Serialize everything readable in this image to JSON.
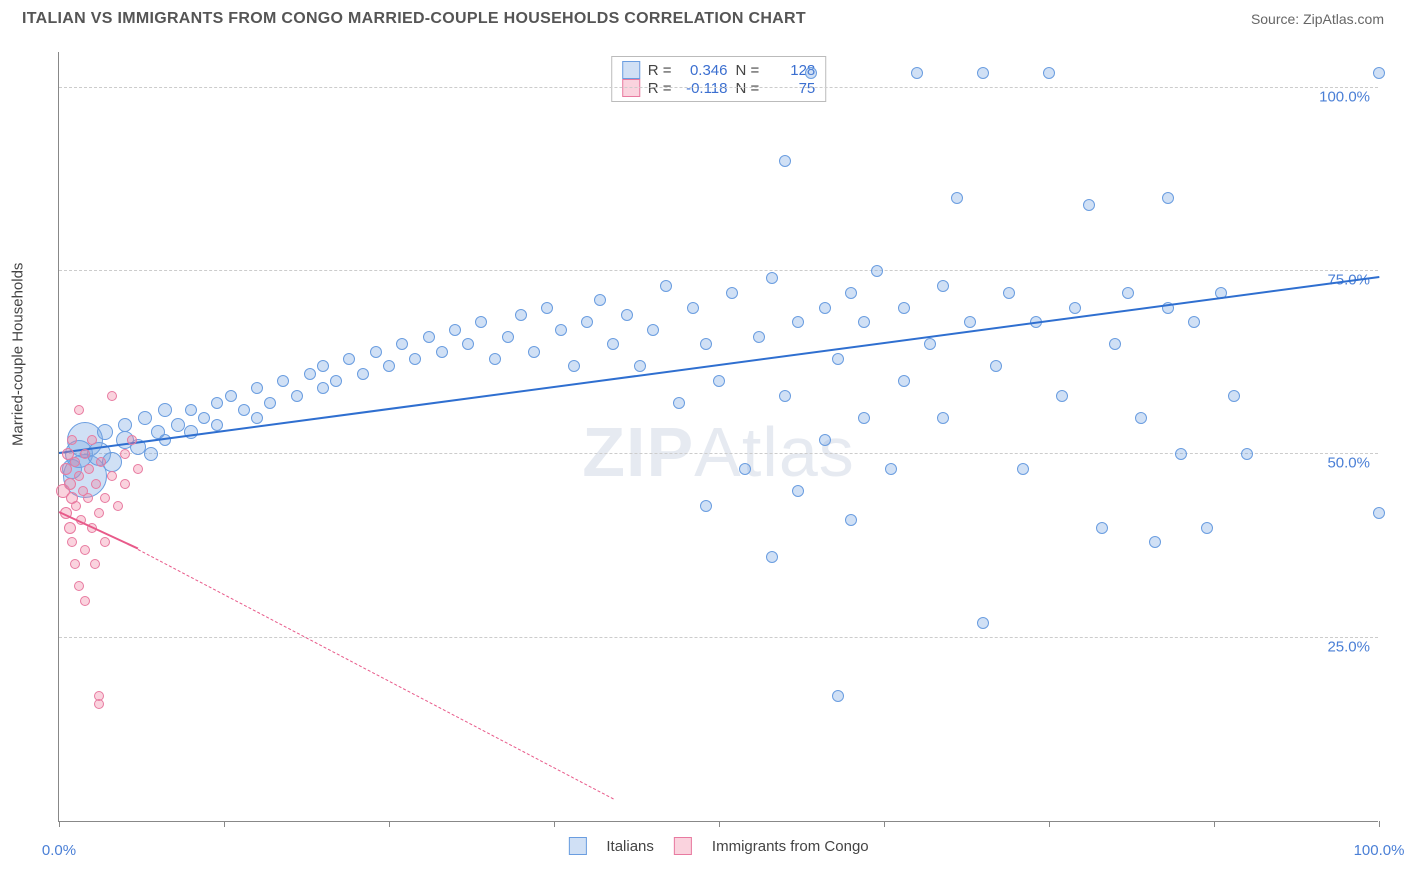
{
  "title": "ITALIAN VS IMMIGRANTS FROM CONGO MARRIED-COUPLE HOUSEHOLDS CORRELATION CHART",
  "source": "Source: ZipAtlas.com",
  "ylabel": "Married-couple Households",
  "watermark": "ZIPAtlas",
  "chart": {
    "type": "scatter",
    "xlim": [
      0,
      100
    ],
    "ylim": [
      0,
      105
    ],
    "xticks": [
      0,
      12.5,
      25,
      37.5,
      50,
      62.5,
      75,
      87.5,
      100
    ],
    "xtick_labels": {
      "0": "0.0%",
      "100": "100.0%"
    },
    "yticks": [
      25,
      50,
      75,
      100
    ],
    "ytick_labels": {
      "25": "25.0%",
      "50": "50.0%",
      "75": "75.0%",
      "100": "100.0%"
    },
    "grid_color": "#cccccc",
    "background": "#ffffff"
  },
  "series": [
    {
      "name": "Italians",
      "fill": "rgba(120,165,225,0.35)",
      "stroke": "#6a9de0",
      "trend_color": "#2f6fd0",
      "r_value": "0.346",
      "n_value": "128",
      "trend": {
        "x1": 0,
        "y1": 50,
        "x2": 100,
        "y2": 74
      },
      "points": [
        {
          "x": 1,
          "y": 48,
          "r": 10
        },
        {
          "x": 1.5,
          "y": 50,
          "r": 14
        },
        {
          "x": 2,
          "y": 52,
          "r": 18
        },
        {
          "x": 2,
          "y": 47,
          "r": 22
        },
        {
          "x": 3,
          "y": 50,
          "r": 12
        },
        {
          "x": 3.5,
          "y": 53,
          "r": 8
        },
        {
          "x": 4,
          "y": 49,
          "r": 10
        },
        {
          "x": 5,
          "y": 52,
          "r": 9
        },
        {
          "x": 5,
          "y": 54,
          "r": 7
        },
        {
          "x": 6,
          "y": 51,
          "r": 8
        },
        {
          "x": 6.5,
          "y": 55,
          "r": 7
        },
        {
          "x": 7,
          "y": 50,
          "r": 7
        },
        {
          "x": 7.5,
          "y": 53,
          "r": 7
        },
        {
          "x": 8,
          "y": 56,
          "r": 7
        },
        {
          "x": 8,
          "y": 52,
          "r": 6
        },
        {
          "x": 9,
          "y": 54,
          "r": 7
        },
        {
          "x": 10,
          "y": 53,
          "r": 7
        },
        {
          "x": 10,
          "y": 56,
          "r": 6
        },
        {
          "x": 11,
          "y": 55,
          "r": 6
        },
        {
          "x": 12,
          "y": 57,
          "r": 6
        },
        {
          "x": 12,
          "y": 54,
          "r": 6
        },
        {
          "x": 13,
          "y": 58,
          "r": 6
        },
        {
          "x": 14,
          "y": 56,
          "r": 6
        },
        {
          "x": 15,
          "y": 59,
          "r": 6
        },
        {
          "x": 15,
          "y": 55,
          "r": 6
        },
        {
          "x": 16,
          "y": 57,
          "r": 6
        },
        {
          "x": 17,
          "y": 60,
          "r": 6
        },
        {
          "x": 18,
          "y": 58,
          "r": 6
        },
        {
          "x": 19,
          "y": 61,
          "r": 6
        },
        {
          "x": 20,
          "y": 59,
          "r": 6
        },
        {
          "x": 20,
          "y": 62,
          "r": 6
        },
        {
          "x": 21,
          "y": 60,
          "r": 6
        },
        {
          "x": 22,
          "y": 63,
          "r": 6
        },
        {
          "x": 23,
          "y": 61,
          "r": 6
        },
        {
          "x": 24,
          "y": 64,
          "r": 6
        },
        {
          "x": 25,
          "y": 62,
          "r": 6
        },
        {
          "x": 26,
          "y": 65,
          "r": 6
        },
        {
          "x": 27,
          "y": 63,
          "r": 6
        },
        {
          "x": 28,
          "y": 66,
          "r": 6
        },
        {
          "x": 29,
          "y": 64,
          "r": 6
        },
        {
          "x": 30,
          "y": 67,
          "r": 6
        },
        {
          "x": 31,
          "y": 65,
          "r": 6
        },
        {
          "x": 32,
          "y": 68,
          "r": 6
        },
        {
          "x": 33,
          "y": 63,
          "r": 6
        },
        {
          "x": 34,
          "y": 66,
          "r": 6
        },
        {
          "x": 35,
          "y": 69,
          "r": 6
        },
        {
          "x": 36,
          "y": 64,
          "r": 6
        },
        {
          "x": 37,
          "y": 70,
          "r": 6
        },
        {
          "x": 38,
          "y": 67,
          "r": 6
        },
        {
          "x": 39,
          "y": 62,
          "r": 6
        },
        {
          "x": 40,
          "y": 68,
          "r": 6
        },
        {
          "x": 41,
          "y": 71,
          "r": 6
        },
        {
          "x": 42,
          "y": 65,
          "r": 6
        },
        {
          "x": 43,
          "y": 69,
          "r": 6
        },
        {
          "x": 44,
          "y": 62,
          "r": 6
        },
        {
          "x": 45,
          "y": 67,
          "r": 6
        },
        {
          "x": 46,
          "y": 73,
          "r": 6
        },
        {
          "x": 47,
          "y": 57,
          "r": 6
        },
        {
          "x": 48,
          "y": 70,
          "r": 6
        },
        {
          "x": 49,
          "y": 43,
          "r": 6
        },
        {
          "x": 49,
          "y": 65,
          "r": 6
        },
        {
          "x": 50,
          "y": 60,
          "r": 6
        },
        {
          "x": 51,
          "y": 72,
          "r": 6
        },
        {
          "x": 52,
          "y": 48,
          "r": 6
        },
        {
          "x": 53,
          "y": 66,
          "r": 6
        },
        {
          "x": 54,
          "y": 74,
          "r": 6
        },
        {
          "x": 54,
          "y": 36,
          "r": 6
        },
        {
          "x": 55,
          "y": 90,
          "r": 6
        },
        {
          "x": 55,
          "y": 58,
          "r": 6
        },
        {
          "x": 56,
          "y": 68,
          "r": 6
        },
        {
          "x": 56,
          "y": 45,
          "r": 6
        },
        {
          "x": 57,
          "y": 102,
          "r": 6
        },
        {
          "x": 58,
          "y": 70,
          "r": 6
        },
        {
          "x": 58,
          "y": 52,
          "r": 6
        },
        {
          "x": 59,
          "y": 63,
          "r": 6
        },
        {
          "x": 59,
          "y": 17,
          "r": 6
        },
        {
          "x": 60,
          "y": 72,
          "r": 6
        },
        {
          "x": 60,
          "y": 41,
          "r": 6
        },
        {
          "x": 61,
          "y": 55,
          "r": 6
        },
        {
          "x": 61,
          "y": 68,
          "r": 6
        },
        {
          "x": 62,
          "y": 75,
          "r": 6
        },
        {
          "x": 63,
          "y": 48,
          "r": 6
        },
        {
          "x": 64,
          "y": 70,
          "r": 6
        },
        {
          "x": 64,
          "y": 60,
          "r": 6
        },
        {
          "x": 65,
          "y": 102,
          "r": 6
        },
        {
          "x": 66,
          "y": 65,
          "r": 6
        },
        {
          "x": 67,
          "y": 73,
          "r": 6
        },
        {
          "x": 67,
          "y": 55,
          "r": 6
        },
        {
          "x": 68,
          "y": 85,
          "r": 6
        },
        {
          "x": 69,
          "y": 68,
          "r": 6
        },
        {
          "x": 70,
          "y": 102,
          "r": 6
        },
        {
          "x": 70,
          "y": 27,
          "r": 6
        },
        {
          "x": 71,
          "y": 62,
          "r": 6
        },
        {
          "x": 72,
          "y": 72,
          "r": 6
        },
        {
          "x": 73,
          "y": 48,
          "r": 6
        },
        {
          "x": 74,
          "y": 68,
          "r": 6
        },
        {
          "x": 75,
          "y": 102,
          "r": 6
        },
        {
          "x": 76,
          "y": 58,
          "r": 6
        },
        {
          "x": 77,
          "y": 70,
          "r": 6
        },
        {
          "x": 78,
          "y": 84,
          "r": 6
        },
        {
          "x": 79,
          "y": 40,
          "r": 6
        },
        {
          "x": 80,
          "y": 65,
          "r": 6
        },
        {
          "x": 81,
          "y": 72,
          "r": 6
        },
        {
          "x": 82,
          "y": 55,
          "r": 6
        },
        {
          "x": 83,
          "y": 38,
          "r": 6
        },
        {
          "x": 84,
          "y": 70,
          "r": 6
        },
        {
          "x": 84,
          "y": 85,
          "r": 6
        },
        {
          "x": 85,
          "y": 50,
          "r": 6
        },
        {
          "x": 86,
          "y": 68,
          "r": 6
        },
        {
          "x": 87,
          "y": 40,
          "r": 6
        },
        {
          "x": 88,
          "y": 72,
          "r": 6
        },
        {
          "x": 89,
          "y": 58,
          "r": 6
        },
        {
          "x": 90,
          "y": 50,
          "r": 6
        },
        {
          "x": 100,
          "y": 102,
          "r": 6
        },
        {
          "x": 100,
          "y": 42,
          "r": 6
        }
      ]
    },
    {
      "name": "Immigrants from Congo",
      "fill": "rgba(240,130,160,0.35)",
      "stroke": "#e87aa0",
      "trend_color": "#e85a8a",
      "r_value": "-0.118",
      "n_value": "75",
      "trend": {
        "x1": 0,
        "y1": 42,
        "x2": 6,
        "y2": 37
      },
      "trend_dash": {
        "x1": 6,
        "y1": 37,
        "x2": 42,
        "y2": 3
      },
      "points": [
        {
          "x": 0.3,
          "y": 45,
          "r": 7
        },
        {
          "x": 0.5,
          "y": 48,
          "r": 6
        },
        {
          "x": 0.5,
          "y": 42,
          "r": 6
        },
        {
          "x": 0.7,
          "y": 50,
          "r": 6
        },
        {
          "x": 0.8,
          "y": 46,
          "r": 6
        },
        {
          "x": 0.8,
          "y": 40,
          "r": 6
        },
        {
          "x": 1,
          "y": 52,
          "r": 5
        },
        {
          "x": 1,
          "y": 44,
          "r": 6
        },
        {
          "x": 1,
          "y": 38,
          "r": 5
        },
        {
          "x": 1.2,
          "y": 49,
          "r": 5
        },
        {
          "x": 1.2,
          "y": 35,
          "r": 5
        },
        {
          "x": 1.3,
          "y": 43,
          "r": 5
        },
        {
          "x": 1.5,
          "y": 47,
          "r": 5
        },
        {
          "x": 1.5,
          "y": 32,
          "r": 5
        },
        {
          "x": 1.5,
          "y": 56,
          "r": 5
        },
        {
          "x": 1.7,
          "y": 41,
          "r": 5
        },
        {
          "x": 1.8,
          "y": 45,
          "r": 5
        },
        {
          "x": 2,
          "y": 50,
          "r": 5
        },
        {
          "x": 2,
          "y": 37,
          "r": 5
        },
        {
          "x": 2,
          "y": 30,
          "r": 5
        },
        {
          "x": 2.2,
          "y": 44,
          "r": 5
        },
        {
          "x": 2.3,
          "y": 48,
          "r": 5
        },
        {
          "x": 2.5,
          "y": 40,
          "r": 5
        },
        {
          "x": 2.5,
          "y": 52,
          "r": 5
        },
        {
          "x": 2.7,
          "y": 35,
          "r": 5
        },
        {
          "x": 2.8,
          "y": 46,
          "r": 5
        },
        {
          "x": 3,
          "y": 42,
          "r": 5
        },
        {
          "x": 3,
          "y": 16,
          "r": 5
        },
        {
          "x": 3,
          "y": 17,
          "r": 5
        },
        {
          "x": 3.2,
          "y": 49,
          "r": 5
        },
        {
          "x": 3.5,
          "y": 44,
          "r": 5
        },
        {
          "x": 3.5,
          "y": 38,
          "r": 5
        },
        {
          "x": 4,
          "y": 47,
          "r": 5
        },
        {
          "x": 4,
          "y": 58,
          "r": 5
        },
        {
          "x": 4.5,
          "y": 43,
          "r": 5
        },
        {
          "x": 5,
          "y": 50,
          "r": 5
        },
        {
          "x": 5,
          "y": 46,
          "r": 5
        },
        {
          "x": 5.5,
          "y": 52,
          "r": 5
        },
        {
          "x": 6,
          "y": 48,
          "r": 5
        }
      ]
    }
  ],
  "legend": {
    "italians": "Italians",
    "congo": "Immigrants from Congo"
  },
  "stats_labels": {
    "r": "R =",
    "n": "N ="
  }
}
